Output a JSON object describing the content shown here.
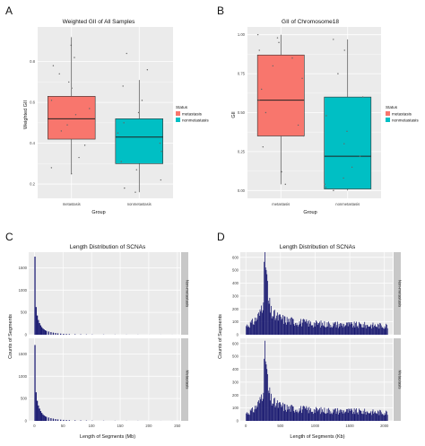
{
  "panels": {
    "A": {
      "letter": "A"
    },
    "B": {
      "letter": "B"
    },
    "C": {
      "letter": "C"
    },
    "D": {
      "letter": "D"
    }
  },
  "chart_data": [
    {
      "id": "A",
      "type": "box",
      "title": "Weighted GII of All Samples",
      "xlabel": "Group",
      "ylabel": "Weighted GII",
      "categories": [
        "metastasis",
        "nonmetastasis"
      ],
      "yticks": [
        0.2,
        0.4,
        0.6,
        0.8
      ],
      "ylim": [
        0.13,
        0.97
      ],
      "boxes": [
        {
          "category": "metastasis",
          "whisker_low": 0.25,
          "q1": 0.42,
          "median": 0.52,
          "q3": 0.63,
          "whisker_high": 0.92,
          "fill": "#f8766d"
        },
        {
          "category": "nonmetastasis",
          "whisker_low": 0.16,
          "q1": 0.3,
          "median": 0.43,
          "q3": 0.52,
          "whisker_high": 0.71,
          "fill": "#00bfc4"
        }
      ],
      "points": [
        {
          "category": "metastasis",
          "y": 0.88
        },
        {
          "category": "metastasis",
          "y": 0.82
        },
        {
          "category": "metastasis",
          "y": 0.78
        },
        {
          "category": "metastasis",
          "y": 0.74
        },
        {
          "category": "metastasis",
          "y": 0.7
        },
        {
          "category": "metastasis",
          "y": 0.67
        },
        {
          "category": "metastasis",
          "y": 0.61
        },
        {
          "category": "metastasis",
          "y": 0.57
        },
        {
          "category": "metastasis",
          "y": 0.54
        },
        {
          "category": "metastasis",
          "y": 0.49
        },
        {
          "category": "metastasis",
          "y": 0.46
        },
        {
          "category": "metastasis",
          "y": 0.39
        },
        {
          "category": "metastasis",
          "y": 0.33
        },
        {
          "category": "metastasis",
          "y": 0.28
        },
        {
          "category": "metastasis",
          "y": 0.25
        },
        {
          "category": "nonmetastasis",
          "y": 0.84
        },
        {
          "category": "nonmetastasis",
          "y": 0.76
        },
        {
          "category": "nonmetastasis",
          "y": 0.68
        },
        {
          "category": "nonmetastasis",
          "y": 0.61
        },
        {
          "category": "nonmetastasis",
          "y": 0.55
        },
        {
          "category": "nonmetastasis",
          "y": 0.5
        },
        {
          "category": "nonmetastasis",
          "y": 0.45
        },
        {
          "category": "nonmetastasis",
          "y": 0.4
        },
        {
          "category": "nonmetastasis",
          "y": 0.36
        },
        {
          "category": "nonmetastasis",
          "y": 0.31
        },
        {
          "category": "nonmetastasis",
          "y": 0.27
        },
        {
          "category": "nonmetastasis",
          "y": 0.22
        },
        {
          "category": "nonmetastasis",
          "y": 0.18
        },
        {
          "category": "nonmetastasis",
          "y": 0.16
        }
      ],
      "legend": {
        "title": "Status",
        "placement": "right",
        "entries": [
          {
            "label": "metastasis",
            "color": "#f8766d"
          },
          {
            "label": "nonmetastasis",
            "color": "#00bfc4"
          }
        ]
      }
    },
    {
      "id": "B",
      "type": "box",
      "title": "GII of Chromosome18",
      "xlabel": "Group",
      "ylabel": "GII",
      "categories": [
        "metastasis",
        "nonmetastasis"
      ],
      "yticks": [
        0.0,
        0.25,
        0.5,
        0.75,
        1.0
      ],
      "yticklabels": [
        "0.00",
        "0.25",
        "0.50",
        "0.75",
        "1.00"
      ],
      "ylim": [
        -0.05,
        1.05
      ],
      "boxes": [
        {
          "category": "metastasis",
          "whisker_low": 0.04,
          "q1": 0.35,
          "median": 0.58,
          "q3": 0.87,
          "whisker_high": 1.0,
          "fill": "#f8766d"
        },
        {
          "category": "nonmetastasis",
          "whisker_low": 0.0,
          "q1": 0.01,
          "median": 0.22,
          "q3": 0.6,
          "whisker_high": 0.97,
          "fill": "#00bfc4"
        }
      ],
      "points": [
        {
          "category": "metastasis",
          "y": 1.0
        },
        {
          "category": "metastasis",
          "y": 0.98
        },
        {
          "category": "metastasis",
          "y": 0.95
        },
        {
          "category": "metastasis",
          "y": 0.9
        },
        {
          "category": "metastasis",
          "y": 0.85
        },
        {
          "category": "metastasis",
          "y": 0.8
        },
        {
          "category": "metastasis",
          "y": 0.72
        },
        {
          "category": "metastasis",
          "y": 0.65
        },
        {
          "category": "metastasis",
          "y": 0.58
        },
        {
          "category": "metastasis",
          "y": 0.5
        },
        {
          "category": "metastasis",
          "y": 0.42
        },
        {
          "category": "metastasis",
          "y": 0.35
        },
        {
          "category": "metastasis",
          "y": 0.28
        },
        {
          "category": "metastasis",
          "y": 0.12
        },
        {
          "category": "metastasis",
          "y": 0.04
        },
        {
          "category": "nonmetastasis",
          "y": 0.97
        },
        {
          "category": "nonmetastasis",
          "y": 0.9
        },
        {
          "category": "nonmetastasis",
          "y": 0.75
        },
        {
          "category": "nonmetastasis",
          "y": 0.6
        },
        {
          "category": "nonmetastasis",
          "y": 0.48
        },
        {
          "category": "nonmetastasis",
          "y": 0.38
        },
        {
          "category": "nonmetastasis",
          "y": 0.3
        },
        {
          "category": "nonmetastasis",
          "y": 0.22
        },
        {
          "category": "nonmetastasis",
          "y": 0.15
        },
        {
          "category": "nonmetastasis",
          "y": 0.08
        },
        {
          "category": "nonmetastasis",
          "y": 0.04
        },
        {
          "category": "nonmetastasis",
          "y": 0.02
        },
        {
          "category": "nonmetastasis",
          "y": 0.01
        },
        {
          "category": "nonmetastasis",
          "y": 0.0
        }
      ],
      "legend": {
        "title": "Status",
        "placement": "right",
        "entries": [
          {
            "label": "metastasis",
            "color": "#f8766d"
          },
          {
            "label": "nonmetastasis",
            "color": "#00bfc4"
          }
        ]
      }
    },
    {
      "id": "C",
      "type": "bar",
      "title": "Length Distribution of SCNAs",
      "xlabel": "Length of Segments (Mb)",
      "ylabel": "Counts of Segments",
      "bar_color": "#191970",
      "xlim": [
        -10,
        255
      ],
      "xticks": [
        0,
        50,
        100,
        150,
        200,
        250
      ],
      "ylim": [
        0,
        1850
      ],
      "yticks": [
        0,
        500,
        1000,
        1500
      ],
      "facets": [
        {
          "strip": "Non-metastasis",
          "bins": [
            [
              0,
              1750
            ],
            [
              2,
              620
            ],
            [
              4,
              430
            ],
            [
              6,
              330
            ],
            [
              8,
              260
            ],
            [
              10,
              210
            ],
            [
              12,
              170
            ],
            [
              14,
              140
            ],
            [
              16,
              118
            ],
            [
              18,
              100
            ],
            [
              20,
              86
            ],
            [
              24,
              72
            ],
            [
              28,
              58
            ],
            [
              32,
              47
            ],
            [
              36,
              38
            ],
            [
              40,
              31
            ],
            [
              45,
              25
            ],
            [
              50,
              20
            ],
            [
              55,
              16
            ],
            [
              60,
              13
            ],
            [
              70,
              10
            ],
            [
              80,
              8
            ],
            [
              90,
              6
            ],
            [
              100,
              5
            ],
            [
              120,
              4
            ],
            [
              140,
              3
            ],
            [
              160,
              2
            ],
            [
              180,
              2
            ],
            [
              200,
              1
            ],
            [
              220,
              1
            ],
            [
              240,
              1
            ]
          ]
        },
        {
          "strip": "Metastasis",
          "bins": [
            [
              0,
              1700
            ],
            [
              2,
              640
            ],
            [
              4,
              450
            ],
            [
              6,
              345
            ],
            [
              8,
              275
            ],
            [
              10,
              220
            ],
            [
              12,
              178
            ],
            [
              14,
              146
            ],
            [
              16,
              122
            ],
            [
              18,
              104
            ],
            [
              20,
              90
            ],
            [
              24,
              75
            ],
            [
              28,
              61
            ],
            [
              32,
              50
            ],
            [
              36,
              40
            ],
            [
              40,
              33
            ],
            [
              45,
              27
            ],
            [
              50,
              22
            ],
            [
              55,
              18
            ],
            [
              60,
              14
            ],
            [
              70,
              11
            ],
            [
              80,
              9
            ],
            [
              90,
              7
            ],
            [
              100,
              5
            ],
            [
              120,
              4
            ],
            [
              140,
              3
            ],
            [
              160,
              2
            ],
            [
              180,
              2
            ],
            [
              200,
              1
            ],
            [
              220,
              1
            ],
            [
              240,
              1
            ]
          ]
        }
      ]
    },
    {
      "id": "D",
      "type": "bar",
      "title": "Length Distribution of SCNAs",
      "xlabel": "Length of Segments (Kb)",
      "ylabel": "Counts of Segments",
      "bar_color": "#191970",
      "xlim": [
        -80,
        2120
      ],
      "xticks": [
        0,
        500,
        1000,
        1500,
        2000
      ],
      "ylim": [
        0,
        640
      ],
      "yticks": [
        0,
        100,
        200,
        300,
        400,
        500,
        600
      ],
      "facets": [
        {
          "strip": "Non-metastasis",
          "profile": [
            [
              0,
              70
            ],
            [
              100,
              95
            ],
            [
              200,
              160
            ],
            [
              240,
              280
            ],
            [
              260,
              470
            ],
            [
              280,
              600
            ],
            [
              300,
              420
            ],
            [
              320,
              260
            ],
            [
              360,
              170
            ],
            [
              420,
              140
            ],
            [
              500,
              125
            ],
            [
              600,
              110
            ],
            [
              800,
              95
            ],
            [
              1000,
              85
            ],
            [
              1300,
              80
            ],
            [
              1600,
              75
            ],
            [
              2000,
              70
            ]
          ]
        },
        {
          "strip": "Metastasis",
          "profile": [
            [
              0,
              60
            ],
            [
              100,
              80
            ],
            [
              200,
              150
            ],
            [
              240,
              250
            ],
            [
              260,
              400
            ],
            [
              280,
              530
            ],
            [
              300,
              360
            ],
            [
              320,
              230
            ],
            [
              360,
              160
            ],
            [
              420,
              130
            ],
            [
              500,
              115
            ],
            [
              600,
              100
            ],
            [
              800,
              90
            ],
            [
              1000,
              82
            ],
            [
              1300,
              78
            ],
            [
              1600,
              72
            ],
            [
              2000,
              65
            ]
          ]
        }
      ]
    }
  ]
}
